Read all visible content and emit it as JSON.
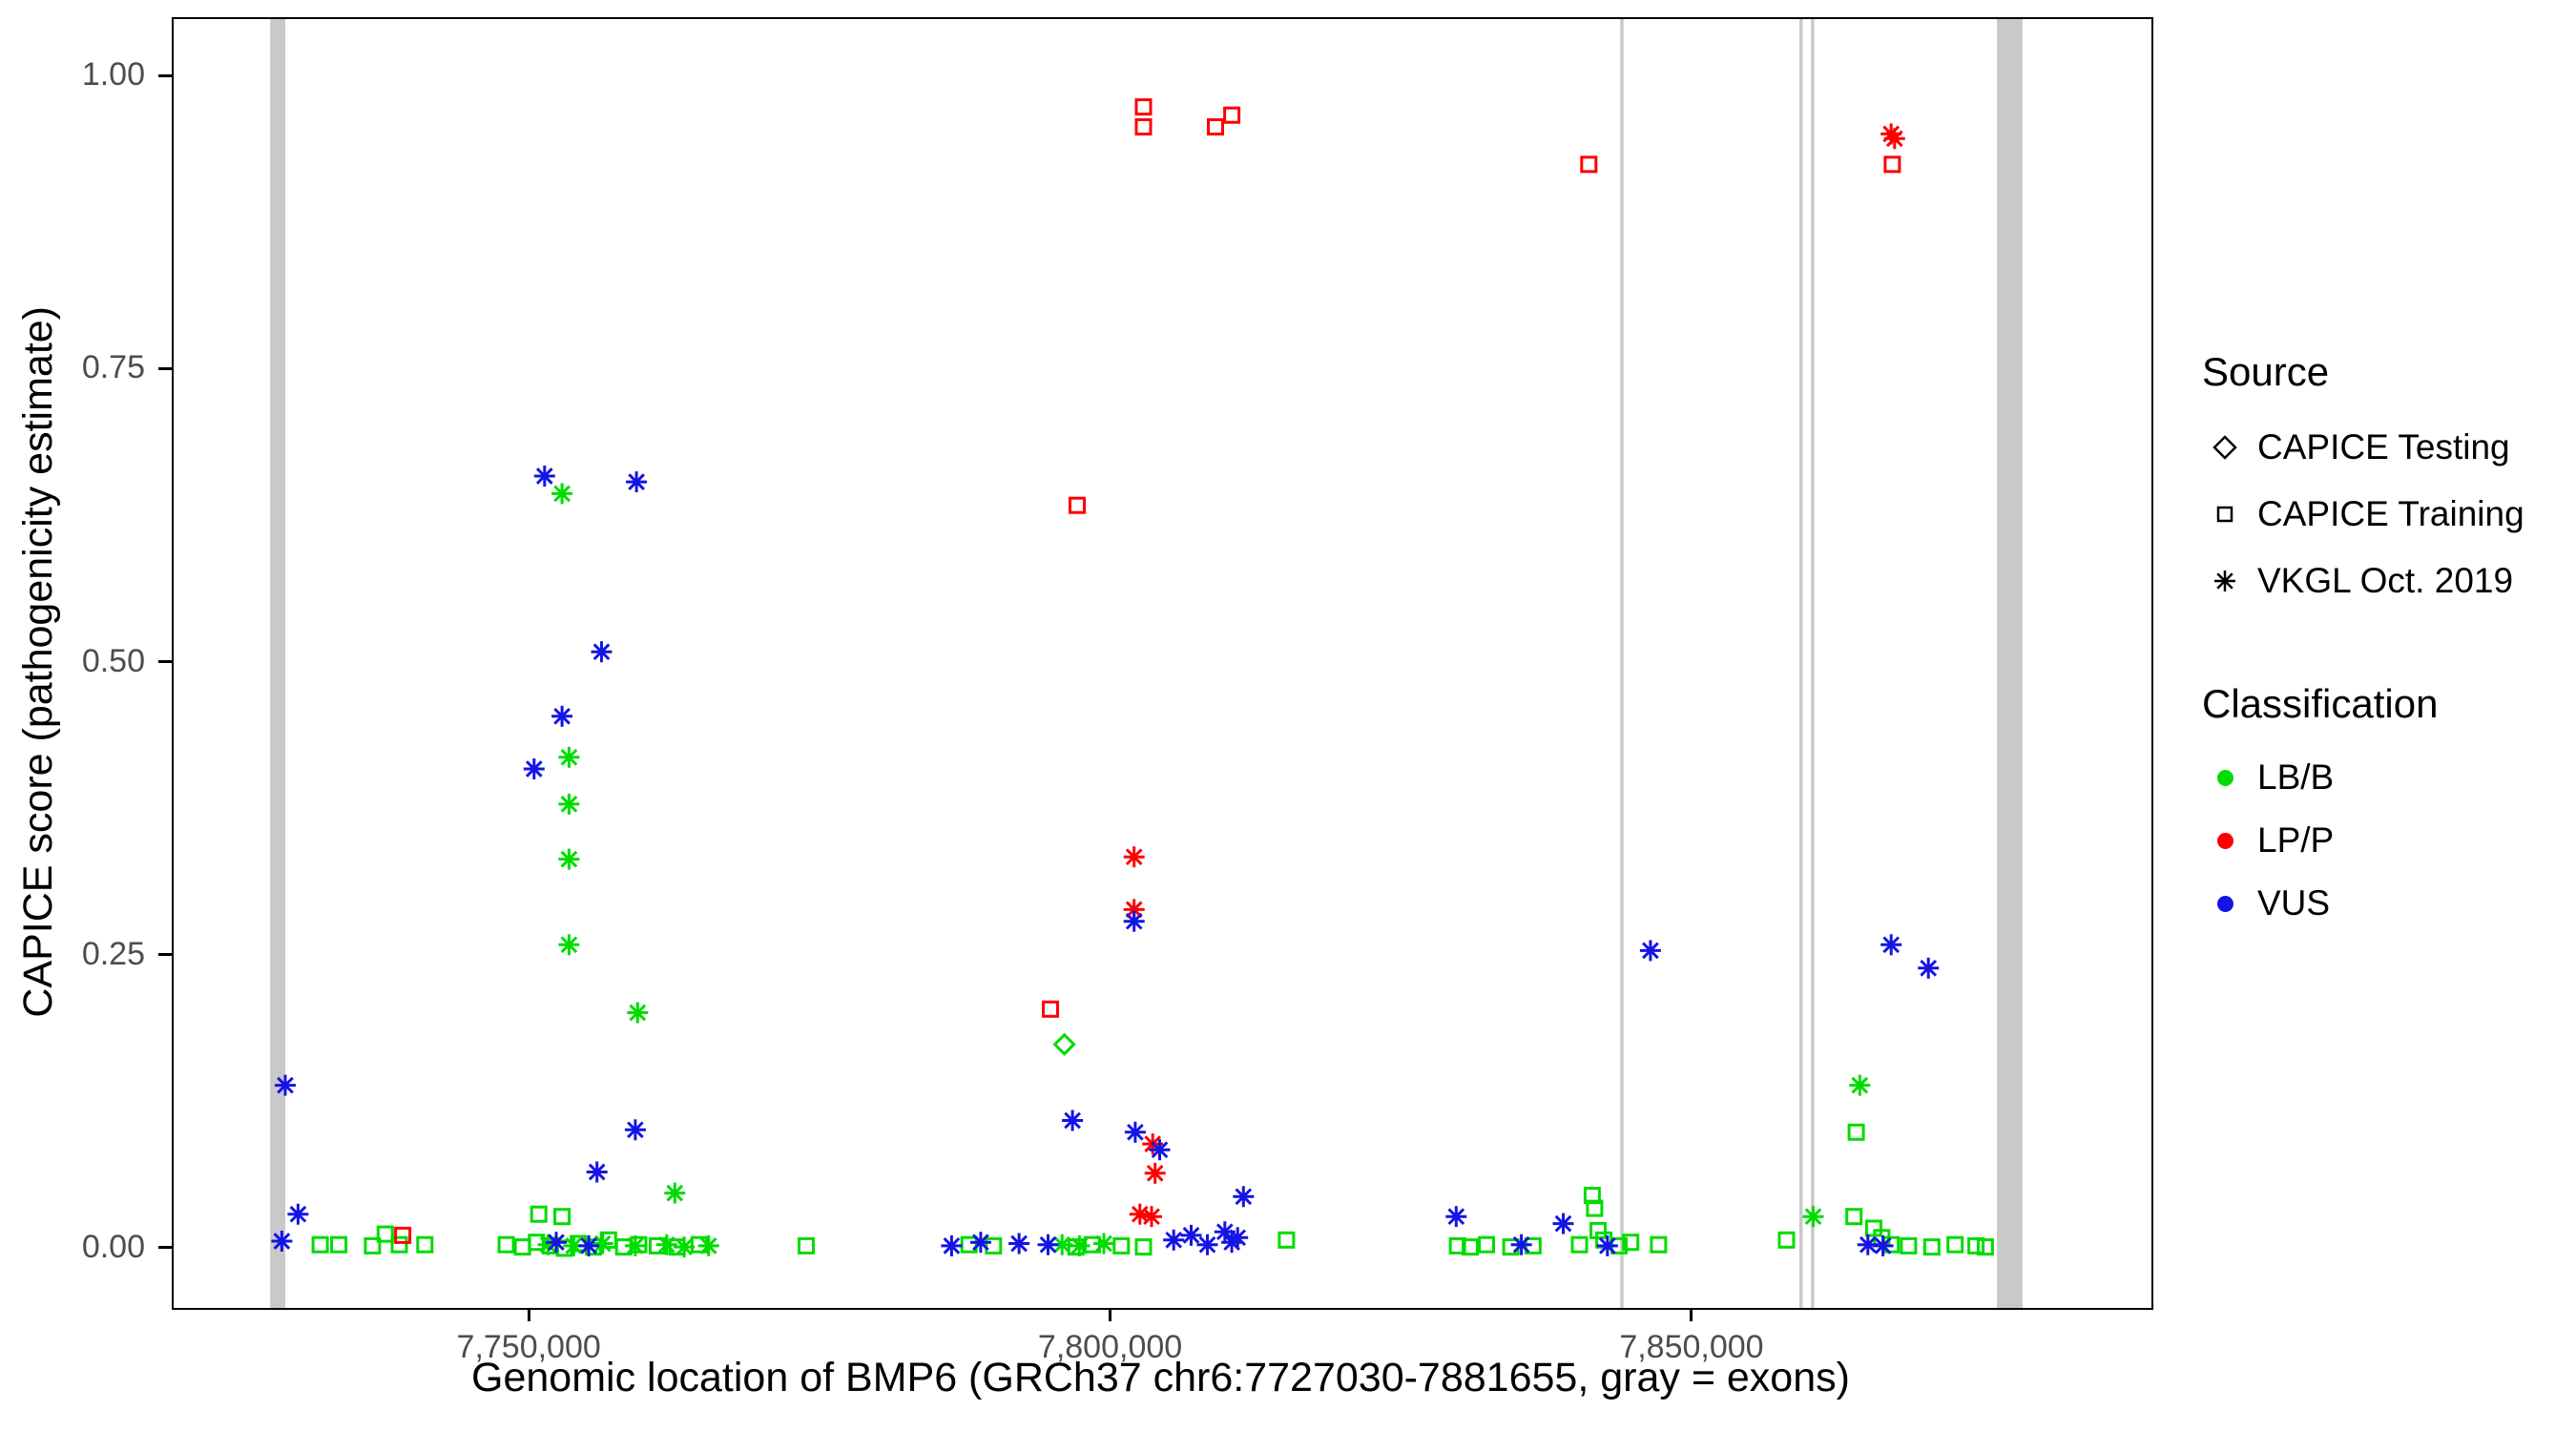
{
  "x_axis": {
    "title": "Genomic location of BMP6 (GRCh37 chr6:7727030-7881655, gray = exons)"
  },
  "y_axis": {
    "title": "CAPICE score (pathogenicity estimate)"
  },
  "legend": {
    "source": {
      "title": "Source",
      "items": [
        {
          "label": "CAPICE Testing",
          "shape": "diamond"
        },
        {
          "label": "CAPICE Training",
          "shape": "square"
        },
        {
          "label": "VKGL Oct. 2019",
          "shape": "asterisk"
        }
      ]
    },
    "classification": {
      "title": "Classification",
      "items": [
        {
          "label": "LB/B",
          "color": "#00dc00"
        },
        {
          "label": "LP/P",
          "color": "#ff0000"
        },
        {
          "label": "VUS",
          "color": "#1414e6"
        }
      ]
    }
  },
  "chart_data": {
    "type": "scatter",
    "title": "",
    "xlabel": "Genomic location of BMP6 (GRCh37 chr6:7727030-7881655, gray = exons)",
    "ylabel": "CAPICE score (pathogenicity estimate)",
    "xlim": [
      7719299,
      7889386
    ],
    "ylim": [
      -0.05,
      1.05
    ],
    "grid": false,
    "legend_position": "right",
    "x_ticks": [
      {
        "value": 7750000,
        "label": "7,750,000"
      },
      {
        "value": 7800000,
        "label": "7,800,000"
      },
      {
        "value": 7850000,
        "label": "7,850,000"
      }
    ],
    "y_ticks": [
      {
        "value": 0.0,
        "label": "0.00"
      },
      {
        "value": 0.25,
        "label": "0.25"
      },
      {
        "value": 0.5,
        "label": "0.50"
      },
      {
        "value": 0.75,
        "label": "0.75"
      },
      {
        "value": 1.0,
        "label": "1.00"
      }
    ],
    "colors": {
      "LB/B": "#00dc00",
      "LP/P": "#ff0000",
      "VUS": "#1414e6",
      "exon": "#c9c9c9"
    },
    "shapes": {
      "CAPICE Testing": "diamond",
      "CAPICE Training": "square",
      "VKGL Oct. 2019": "asterisk"
    },
    "exons": [
      [
        7727600,
        7728900
      ],
      [
        7843700,
        7843950
      ],
      [
        7859100,
        7859350
      ],
      [
        7860100,
        7860350
      ],
      [
        7876100,
        7878300
      ]
    ],
    "series": [
      {
        "source": "CAPICE Training",
        "classification": "LB/B",
        "points": [
          [
            7731900,
            0.004
          ],
          [
            7733500,
            0.004
          ],
          [
            7736400,
            0.003
          ],
          [
            7737500,
            0.013
          ],
          [
            7738700,
            0.004
          ],
          [
            7740900,
            0.004
          ],
          [
            7750700,
            0.03
          ],
          [
            7752700,
            0.028
          ],
          [
            7747900,
            0.004
          ],
          [
            7749300,
            0.002
          ],
          [
            7750500,
            0.006
          ],
          [
            7751700,
            0.003
          ],
          [
            7752900,
            0.001
          ],
          [
            7754100,
            0.005
          ],
          [
            7755400,
            0.002
          ],
          [
            7756700,
            0.008
          ],
          [
            7758000,
            0.002
          ],
          [
            7759300,
            0.004
          ],
          [
            7760900,
            0.003
          ],
          [
            7762600,
            0.002
          ],
          [
            7764500,
            0.004
          ],
          [
            7773700,
            0.003
          ],
          [
            7787700,
            0.004
          ],
          [
            7789800,
            0.003
          ],
          [
            7796900,
            0.002
          ],
          [
            7798300,
            0.004
          ],
          [
            7800800,
            0.003
          ],
          [
            7802700,
            0.002
          ],
          [
            7815000,
            0.008
          ],
          [
            7829700,
            0.003
          ],
          [
            7830800,
            0.002
          ],
          [
            7832200,
            0.004
          ],
          [
            7834300,
            0.002
          ],
          [
            7836200,
            0.003
          ],
          [
            7840200,
            0.004
          ],
          [
            7841300,
            0.046
          ],
          [
            7841500,
            0.035
          ],
          [
            7841800,
            0.016
          ],
          [
            7842300,
            0.008
          ],
          [
            7843600,
            0.003
          ],
          [
            7844600,
            0.006
          ],
          [
            7847000,
            0.004
          ],
          [
            7858000,
            0.008
          ],
          [
            7863800,
            0.028
          ],
          [
            7864000,
            0.1
          ],
          [
            7865500,
            0.018
          ],
          [
            7866200,
            0.01
          ],
          [
            7867000,
            0.004
          ],
          [
            7868500,
            0.003
          ],
          [
            7870500,
            0.002
          ],
          [
            7872500,
            0.004
          ],
          [
            7874300,
            0.003
          ],
          [
            7875100,
            0.002
          ]
        ]
      },
      {
        "source": "CAPICE Training",
        "classification": "LP/P",
        "points": [
          [
            7739000,
            0.012
          ],
          [
            7794700,
            0.205
          ],
          [
            7797000,
            0.635
          ],
          [
            7802700,
            0.975
          ],
          [
            7802700,
            0.958
          ],
          [
            7808900,
            0.958
          ],
          [
            7810300,
            0.968
          ],
          [
            7841000,
            0.926
          ],
          [
            7867100,
            0.926
          ]
        ]
      },
      {
        "source": "CAPICE Testing",
        "classification": "LB/B",
        "points": [
          [
            7795900,
            0.175
          ]
        ]
      },
      {
        "source": "VKGL Oct. 2019",
        "classification": "LB/B",
        "points": [
          [
            7752700,
            0.645
          ],
          [
            7753300,
            0.42
          ],
          [
            7753300,
            0.38
          ],
          [
            7753300,
            0.333
          ],
          [
            7753300,
            0.26
          ],
          [
            7759200,
            0.202
          ],
          [
            7762400,
            0.048
          ],
          [
            7751500,
            0.004
          ],
          [
            7753700,
            0.003
          ],
          [
            7756200,
            0.005
          ],
          [
            7759000,
            0.003
          ],
          [
            7761700,
            0.004
          ],
          [
            7763200,
            0.002
          ],
          [
            7765300,
            0.003
          ],
          [
            7795700,
            0.004
          ],
          [
            7797200,
            0.003
          ],
          [
            7799300,
            0.005
          ],
          [
            7860300,
            0.028
          ],
          [
            7864300,
            0.14
          ]
        ]
      },
      {
        "source": "VKGL Oct. 2019",
        "classification": "LP/P",
        "points": [
          [
            7801900,
            0.335
          ],
          [
            7801900,
            0.29
          ],
          [
            7803500,
            0.09
          ],
          [
            7803700,
            0.065
          ],
          [
            7802400,
            0.03
          ],
          [
            7803400,
            0.028
          ],
          [
            7867000,
            0.952
          ],
          [
            7867300,
            0.948
          ]
        ]
      },
      {
        "source": "VKGL Oct. 2019",
        "classification": "VUS",
        "points": [
          [
            7728900,
            0.14
          ],
          [
            7730000,
            0.03
          ],
          [
            7728600,
            0.007
          ],
          [
            7751200,
            0.66
          ],
          [
            7759100,
            0.655
          ],
          [
            7756100,
            0.51
          ],
          [
            7752700,
            0.455
          ],
          [
            7750300,
            0.41
          ],
          [
            7759000,
            0.102
          ],
          [
            7755700,
            0.066
          ],
          [
            7752200,
            0.006
          ],
          [
            7755000,
            0.003
          ],
          [
            7786200,
            0.003
          ],
          [
            7788700,
            0.006
          ],
          [
            7792000,
            0.005
          ],
          [
            7794500,
            0.004
          ],
          [
            7796600,
            0.11
          ],
          [
            7801900,
            0.28
          ],
          [
            7802000,
            0.1
          ],
          [
            7804100,
            0.085
          ],
          [
            7805300,
            0.008
          ],
          [
            7806800,
            0.012
          ],
          [
            7808200,
            0.004
          ],
          [
            7810300,
            0.006
          ],
          [
            7809700,
            0.015
          ],
          [
            7810800,
            0.01
          ],
          [
            7811300,
            0.045
          ],
          [
            7829600,
            0.028
          ],
          [
            7835200,
            0.004
          ],
          [
            7838800,
            0.022
          ],
          [
            7842600,
            0.003
          ],
          [
            7846300,
            0.255
          ],
          [
            7867000,
            0.26
          ],
          [
            7870200,
            0.24
          ],
          [
            7865000,
            0.004
          ],
          [
            7866300,
            0.003
          ]
        ]
      }
    ]
  }
}
